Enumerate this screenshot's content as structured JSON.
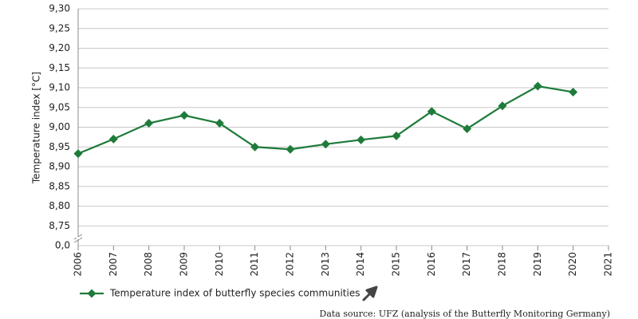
{
  "chart_data": {
    "type": "line",
    "y_label": "Temperature index [°C]",
    "x": [
      2006,
      2007,
      2008,
      2009,
      2010,
      2011,
      2012,
      2013,
      2014,
      2015,
      2016,
      2017,
      2018,
      2019,
      2020
    ],
    "series": [
      {
        "name": "Temperature index of butterfly species communities",
        "color": "#1e7b3a",
        "values": [
          8.933,
          8.97,
          9.01,
          9.03,
          9.01,
          8.95,
          8.944,
          8.957,
          8.968,
          8.978,
          9.04,
          8.996,
          9.054,
          9.104,
          9.089
        ]
      }
    ],
    "xlim": [
      2006,
      2021
    ],
    "xticks": [
      2006,
      2007,
      2008,
      2009,
      2010,
      2011,
      2012,
      2013,
      2014,
      2015,
      2016,
      2017,
      2018,
      2019,
      2020,
      2021
    ],
    "ylim": [
      0,
      9.3
    ],
    "axis_break": [
      0,
      8.7
    ],
    "yticks": [
      {
        "value": 0,
        "label": "0,0"
      },
      {
        "value": 8.75,
        "label": "8,75"
      },
      {
        "value": 8.8,
        "label": "8,80"
      },
      {
        "value": 8.85,
        "label": "8,85"
      },
      {
        "value": 8.9,
        "label": "8,90"
      },
      {
        "value": 8.95,
        "label": "8,95"
      },
      {
        "value": 9.0,
        "label": "9,00"
      },
      {
        "value": 9.05,
        "label": "9,05"
      },
      {
        "value": 9.1,
        "label": "9,10"
      },
      {
        "value": 9.15,
        "label": "9,15"
      },
      {
        "value": 9.2,
        "label": "9,20"
      },
      {
        "value": 9.25,
        "label": "9,25"
      },
      {
        "value": 9.3,
        "label": "9,30"
      }
    ],
    "grid": true,
    "legend": "bottom-left",
    "source": "Data source: UFZ (analysis of the Butterfly Monitoring Germany)"
  }
}
